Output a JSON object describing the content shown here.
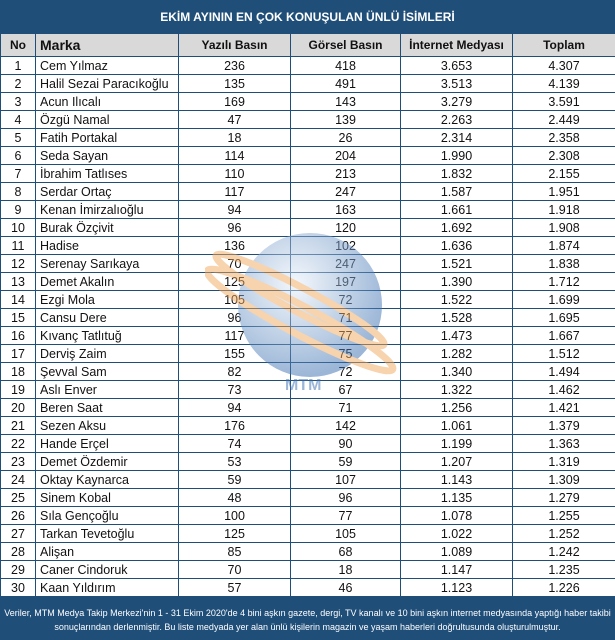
{
  "title": "EKİM AYININ EN ÇOK KONUŞULAN ÜNLÜ İSİMLERİ",
  "columns": [
    "No",
    "Marka",
    "Yazılı Basın",
    "Görsel Basın",
    "İnternet Medyası",
    "Toplam"
  ],
  "rows": [
    [
      "1",
      "Cem Yılmaz",
      "236",
      "418",
      "3.653",
      "4.307"
    ],
    [
      "2",
      "Halil Sezai Paracıkoğlu",
      "135",
      "491",
      "3.513",
      "4.139"
    ],
    [
      "3",
      "Acun Ilıcalı",
      "169",
      "143",
      "3.279",
      "3.591"
    ],
    [
      "4",
      "Özgü Namal",
      "47",
      "139",
      "2.263",
      "2.449"
    ],
    [
      "5",
      "Fatih Portakal",
      "18",
      "26",
      "2.314",
      "2.358"
    ],
    [
      "6",
      "Seda Sayan",
      "114",
      "204",
      "1.990",
      "2.308"
    ],
    [
      "7",
      "İbrahim Tatlıses",
      "110",
      "213",
      "1.832",
      "2.155"
    ],
    [
      "8",
      "Serdar Ortaç",
      "117",
      "247",
      "1.587",
      "1.951"
    ],
    [
      "9",
      "Kenan İmirzalıoğlu",
      "94",
      "163",
      "1.661",
      "1.918"
    ],
    [
      "10",
      "Burak Özçivit",
      "96",
      "120",
      "1.692",
      "1.908"
    ],
    [
      "11",
      "Hadise",
      "136",
      "102",
      "1.636",
      "1.874"
    ],
    [
      "12",
      "Serenay Sarıkaya",
      "70",
      "247",
      "1.521",
      "1.838"
    ],
    [
      "13",
      "Demet Akalın",
      "125",
      "197",
      "1.390",
      "1.712"
    ],
    [
      "14",
      "Ezgi Mola",
      "105",
      "72",
      "1.522",
      "1.699"
    ],
    [
      "15",
      "Cansu Dere",
      "96",
      "71",
      "1.528",
      "1.695"
    ],
    [
      "16",
      "Kıvanç Tatlıtuğ",
      "117",
      "77",
      "1.473",
      "1.667"
    ],
    [
      "17",
      "Derviş Zaim",
      "155",
      "75",
      "1.282",
      "1.512"
    ],
    [
      "18",
      "Şevval Sam",
      "82",
      "72",
      "1.340",
      "1.494"
    ],
    [
      "19",
      "Aslı Enver",
      "73",
      "67",
      "1.322",
      "1.462"
    ],
    [
      "20",
      "Beren Saat",
      "94",
      "71",
      "1.256",
      "1.421"
    ],
    [
      "21",
      "Sezen Aksu",
      "176",
      "142",
      "1.061",
      "1.379"
    ],
    [
      "22",
      "Hande Erçel",
      "74",
      "90",
      "1.199",
      "1.363"
    ],
    [
      "23",
      "Demet Özdemir",
      "53",
      "59",
      "1.207",
      "1.319"
    ],
    [
      "24",
      "Oktay Kaynarca",
      "59",
      "107",
      "1.143",
      "1.309"
    ],
    [
      "25",
      "Sinem Kobal",
      "48",
      "96",
      "1.135",
      "1.279"
    ],
    [
      "26",
      "Sıla Gençoğlu",
      "100",
      "77",
      "1.078",
      "1.255"
    ],
    [
      "27",
      "Tarkan Tevetoğlu",
      "125",
      "105",
      "1.022",
      "1.252"
    ],
    [
      "28",
      "Alişan",
      "85",
      "68",
      "1.089",
      "1.242"
    ],
    [
      "29",
      "Caner Cindoruk",
      "70",
      "18",
      "1.147",
      "1.235"
    ],
    [
      "30",
      "Kaan Yıldırım",
      "57",
      "46",
      "1.123",
      "1.226"
    ]
  ],
  "footer": "Veriler, MTM Medya Takip Merkezi'nin 1 - 31 Ekim 2020'de 4 bini aşkın gazete, dergi, TV kanalı ve 10 bini aşkın internet medyasında yaptığı haber takibi sonuçlarından derlenmiştir.  Bu liste medyada yer alan ünlü kişilerin magazin ve yaşam haberleri doğrultusunda oluşturulmuştur.",
  "watermark": "MTM",
  "colors": {
    "header_bg": "#1f4e79",
    "column_header_bg": "#d9d9d9"
  }
}
